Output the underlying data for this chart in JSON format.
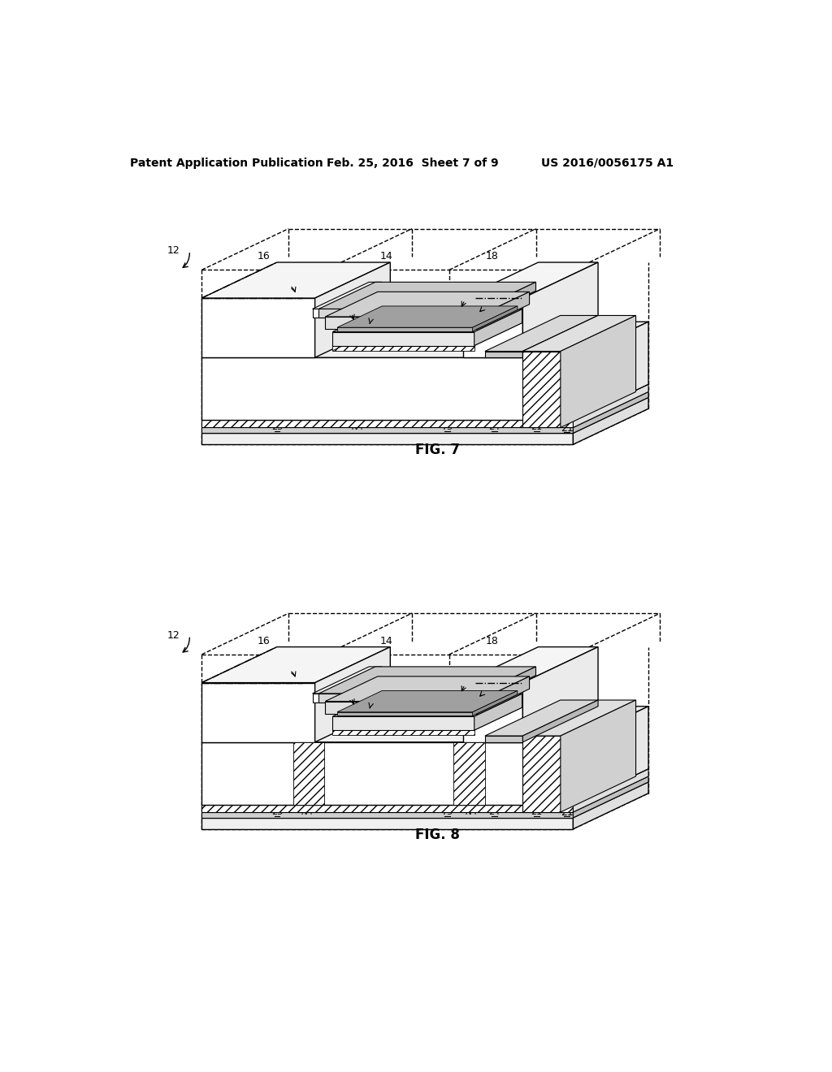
{
  "background_color": "#ffffff",
  "header_left": "Patent Application Publication",
  "header_center": "Feb. 25, 2016  Sheet 7 of 9",
  "header_right": "US 2016/0056175 A1",
  "fig7_caption": "FIG. 7",
  "fig8_caption": "FIG. 8",
  "font_size_header": 10,
  "font_size_labels": 9,
  "font_size_caption": 12
}
